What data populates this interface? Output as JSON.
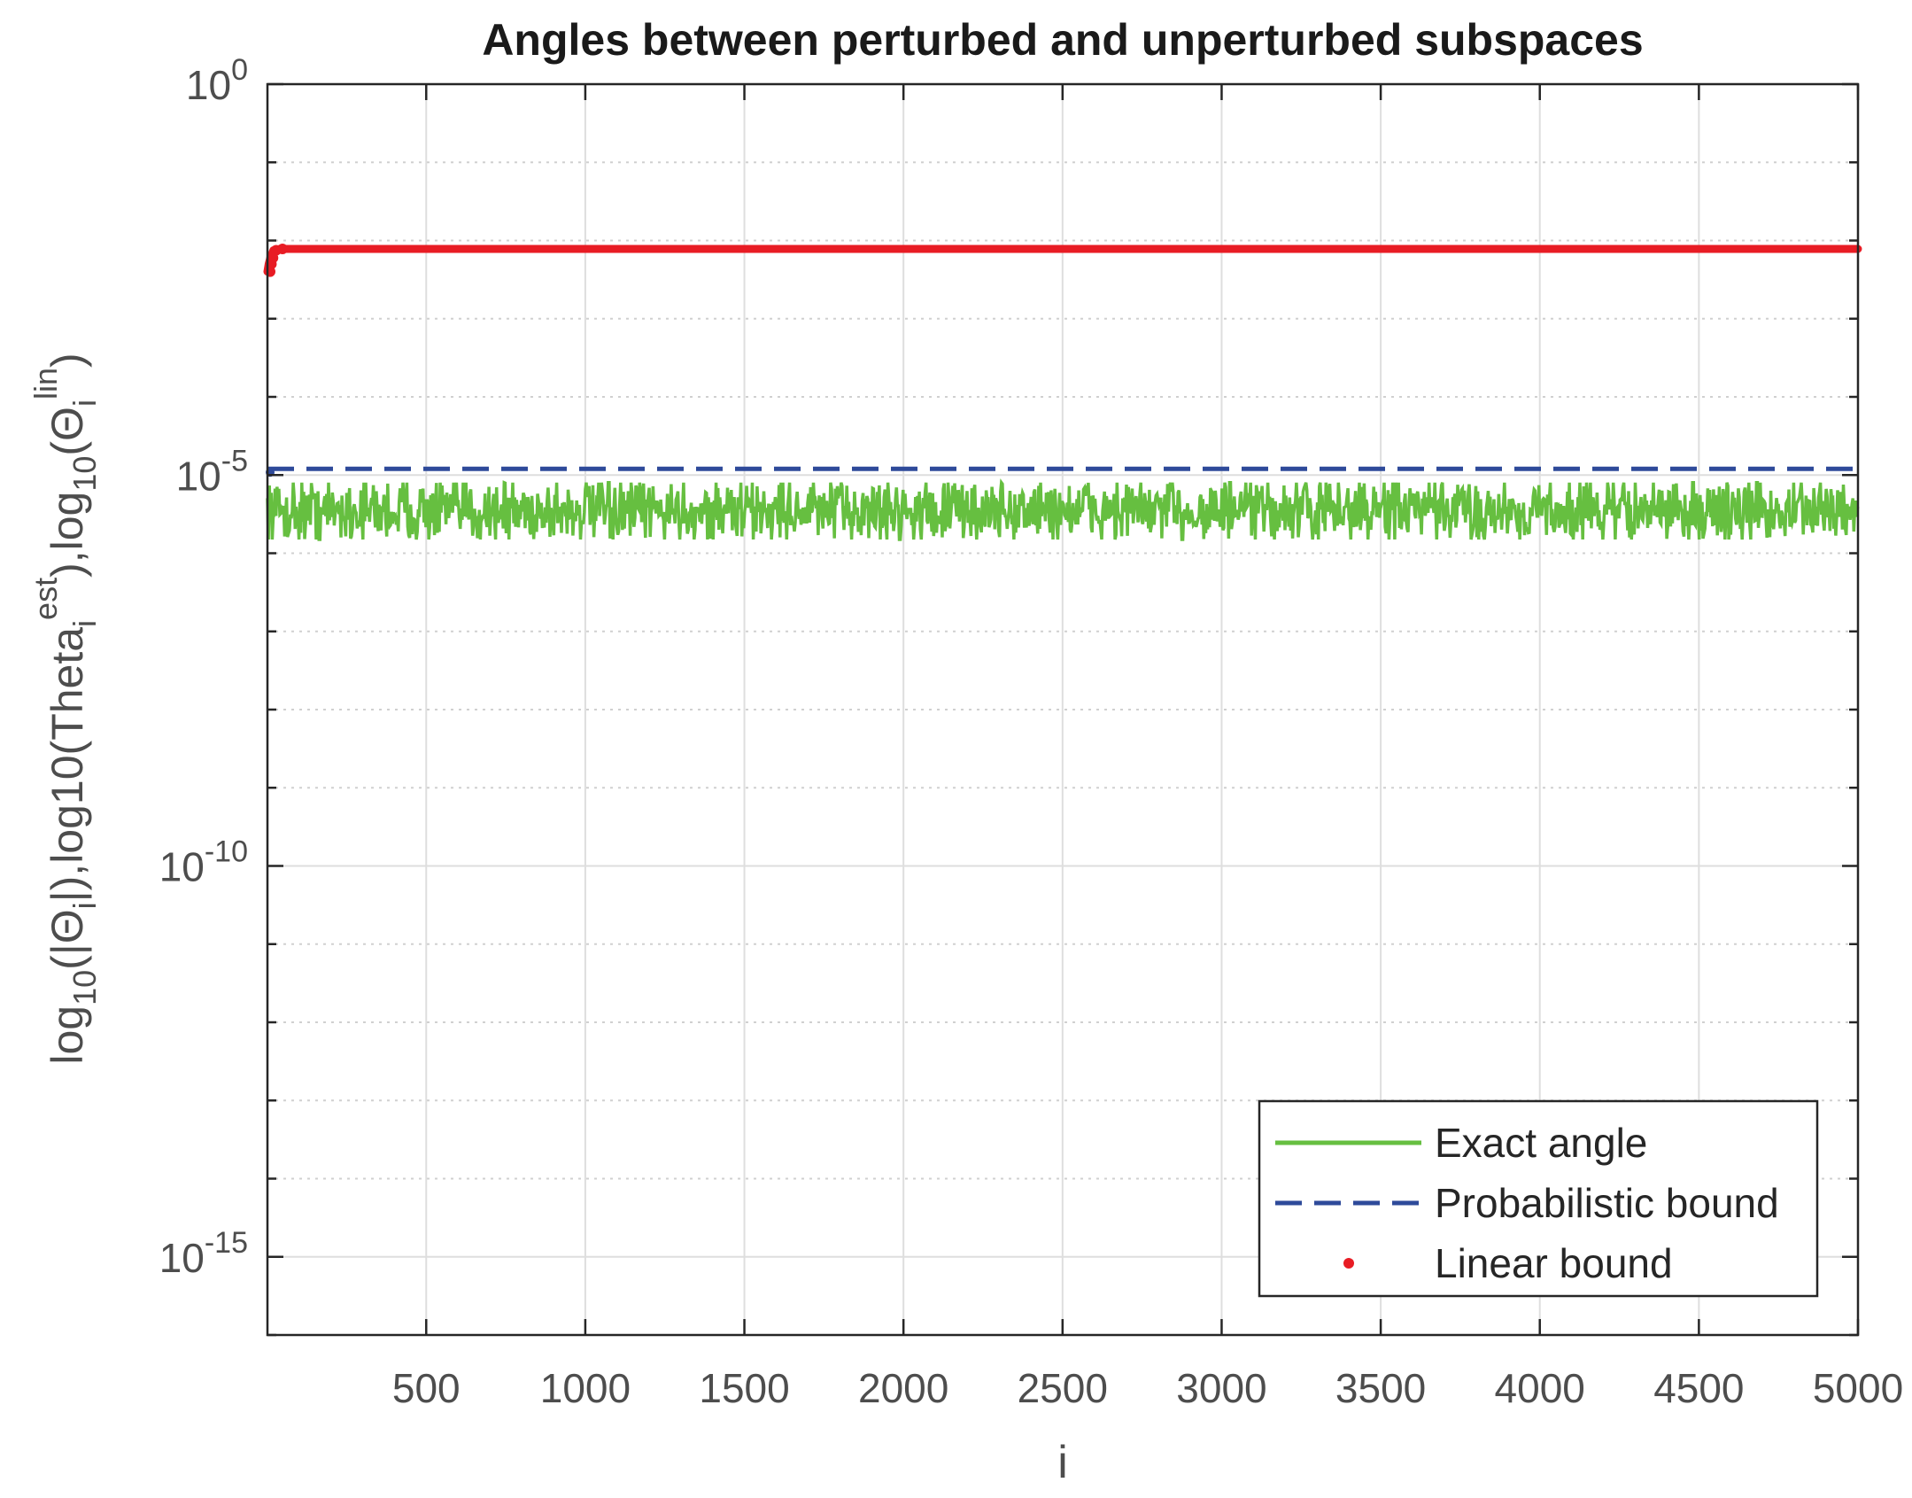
{
  "chart_data": {
    "type": "line",
    "title": "Angles between perturbed and unperturbed subspaces",
    "xlabel": "i",
    "ylabel": "log_10(|Θ_i|),log10(Theta_i^est),log_10(Θ_i^lin)",
    "ylabel_parts": {
      "p1": "log",
      "s1": "10",
      "p2": "(|Θ",
      "s2": "i",
      "p3": "|),log10(Theta",
      "s3": "i",
      "u3": "est",
      "p4": "),log",
      "s4": "10",
      "p5": "(Θ",
      "s5": "i",
      "u5": "lin",
      "p6": ")"
    },
    "xlim": [
      1,
      5000
    ],
    "ylim": [
      1e-16,
      1
    ],
    "yscale": "log",
    "grid": true,
    "minor_grid_y": true,
    "legend_position": "bottom-right",
    "x_ticks": [
      500,
      1000,
      1500,
      2000,
      2500,
      3000,
      3500,
      4000,
      4500,
      5000
    ],
    "x_tick_labels": [
      "500",
      "1000",
      "1500",
      "2000",
      "2500",
      "3000",
      "3500",
      "4000",
      "4500",
      "5000"
    ],
    "y_ticks": [
      {
        "value": 1,
        "base": "10",
        "exp": "0"
      },
      {
        "value": 1e-05,
        "base": "10",
        "exp": "-5"
      },
      {
        "value": 1e-10,
        "base": "10",
        "exp": "-10"
      },
      {
        "value": 1e-15,
        "base": "10",
        "exp": "-15"
      }
    ],
    "series": [
      {
        "name": "Exact angle",
        "style": "solid",
        "color": "#66bf40",
        "x_range": [
          1,
          5000
        ],
        "typical_value": 3.5e-06,
        "range": [
          1.5e-06,
          8e-06
        ]
      },
      {
        "name": "Probabilistic bound",
        "style": "dashed",
        "color": "#2e4a9a",
        "x": [
          1,
          5000
        ],
        "values": [
          1.2e-05,
          1.2e-05
        ]
      },
      {
        "name": "Linear bound",
        "style": "dots",
        "color": "#e81c24",
        "x": [
          1,
          5,
          10,
          20,
          40,
          5000
        ],
        "values": [
          0.004,
          0.005,
          0.006,
          0.0075,
          0.0078,
          0.0078
        ]
      }
    ]
  }
}
